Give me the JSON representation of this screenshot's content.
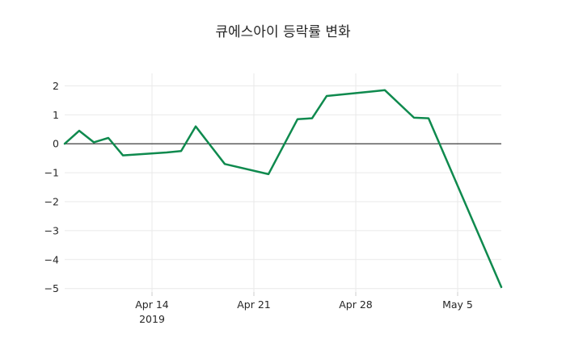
{
  "title": "큐에스아이 등락률 변화",
  "chart_data": {
    "type": "line",
    "title": "큐에스아이 등락률 변화",
    "xlabel": "",
    "ylabel": "",
    "legend_position": "none",
    "grid": true,
    "background_color": "#ffffff",
    "line_color": "#0f8a4e",
    "grid_color": "#e9e9e9",
    "zero_line_color": "#3d3d3d",
    "tick_mark_color": "#cccccc",
    "text_color": "#262626",
    "x_range": [
      "2019-04-08",
      "2019-05-08"
    ],
    "y_range": [
      -5.12,
      2.43
    ],
    "y_ticks": [
      2,
      1,
      0,
      -1,
      -2,
      -3,
      -4,
      -5
    ],
    "x_ticks": [
      {
        "date": "2019-04-14",
        "label": "Apr 14",
        "sublabel": "2019"
      },
      {
        "date": "2019-04-21",
        "label": "Apr 21",
        "sublabel": ""
      },
      {
        "date": "2019-04-28",
        "label": "Apr 28",
        "sublabel": ""
      },
      {
        "date": "2019-05-05",
        "label": "May 5",
        "sublabel": ""
      }
    ],
    "series": [
      {
        "name": "등락률",
        "points": [
          {
            "date": "2019-04-08",
            "value": 0.0
          },
          {
            "date": "2019-04-09",
            "value": 0.45
          },
          {
            "date": "2019-04-10",
            "value": 0.05
          },
          {
            "date": "2019-04-11",
            "value": 0.2
          },
          {
            "date": "2019-04-12",
            "value": -0.4
          },
          {
            "date": "2019-04-15",
            "value": -0.3
          },
          {
            "date": "2019-04-16",
            "value": -0.25
          },
          {
            "date": "2019-04-17",
            "value": 0.6
          },
          {
            "date": "2019-04-19",
            "value": -0.7
          },
          {
            "date": "2019-04-22",
            "value": -1.05
          },
          {
            "date": "2019-04-24",
            "value": 0.85
          },
          {
            "date": "2019-04-25",
            "value": 0.88
          },
          {
            "date": "2019-04-26",
            "value": 1.65
          },
          {
            "date": "2019-04-29",
            "value": 1.8
          },
          {
            "date": "2019-04-30",
            "value": 1.85
          },
          {
            "date": "2019-05-02",
            "value": 0.9
          },
          {
            "date": "2019-05-03",
            "value": 0.88
          },
          {
            "date": "2019-05-08",
            "value": -4.95
          }
        ]
      }
    ]
  }
}
